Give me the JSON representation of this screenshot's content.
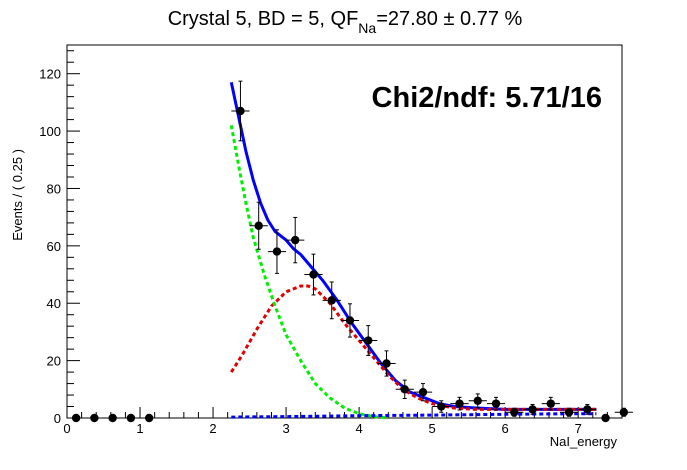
{
  "chart_data": {
    "type": "scatter",
    "title": {
      "main": "Crystal 5, BD = 5, QF",
      "subscript": "Na",
      "tail": "=27.80 ± 0.77 %"
    },
    "xlabel": "NaI_energy",
    "ylabel": "Events / ( 0.25 )",
    "annotation": "Chi2/ndf: 5.71/16",
    "xlim": [
      0,
      7.6
    ],
    "ylim": [
      0,
      130
    ],
    "x_ticks": [
      0,
      1,
      2,
      3,
      4,
      5,
      6,
      7
    ],
    "y_ticks": [
      0,
      20,
      40,
      60,
      80,
      100,
      120
    ],
    "points": [
      {
        "x": 0.125,
        "y": 0,
        "err": 0
      },
      {
        "x": 0.375,
        "y": 0,
        "err": 0
      },
      {
        "x": 0.625,
        "y": 0,
        "err": 0
      },
      {
        "x": 0.875,
        "y": 0,
        "err": 0
      },
      {
        "x": 1.125,
        "y": 0,
        "err": 0
      },
      {
        "x": 2.375,
        "y": 107,
        "err": 10.4
      },
      {
        "x": 2.625,
        "y": 67,
        "err": 8.2
      },
      {
        "x": 2.875,
        "y": 58,
        "err": 7.6
      },
      {
        "x": 3.125,
        "y": 62,
        "err": 7.9
      },
      {
        "x": 3.375,
        "y": 50,
        "err": 7.1
      },
      {
        "x": 3.625,
        "y": 41,
        "err": 6.4
      },
      {
        "x": 3.875,
        "y": 34,
        "err": 5.8
      },
      {
        "x": 4.125,
        "y": 27,
        "err": 5.2
      },
      {
        "x": 4.375,
        "y": 19,
        "err": 4.4
      },
      {
        "x": 4.625,
        "y": 10,
        "err": 3.2
      },
      {
        "x": 4.875,
        "y": 9,
        "err": 3.0
      },
      {
        "x": 5.125,
        "y": 4,
        "err": 2.0
      },
      {
        "x": 5.375,
        "y": 5,
        "err": 2.2
      },
      {
        "x": 5.625,
        "y": 6,
        "err": 2.4
      },
      {
        "x": 5.875,
        "y": 5,
        "err": 2.2
      },
      {
        "x": 6.125,
        "y": 2,
        "err": 1.4
      },
      {
        "x": 6.375,
        "y": 3,
        "err": 1.7
      },
      {
        "x": 6.625,
        "y": 5,
        "err": 2.2
      },
      {
        "x": 6.875,
        "y": 2,
        "err": 1.4
      },
      {
        "x": 7.125,
        "y": 3,
        "err": 1.7
      },
      {
        "x": 7.375,
        "y": 0,
        "err": 0
      },
      {
        "x": 7.625,
        "y": 2,
        "err": 1.4
      }
    ],
    "curves": [
      {
        "color": "#0000ff",
        "style": "solid",
        "points": [
          [
            2.25,
            117
          ],
          [
            2.35,
            105
          ],
          [
            2.45,
            93
          ],
          [
            2.55,
            83
          ],
          [
            2.65,
            75
          ],
          [
            2.75,
            69
          ],
          [
            2.85,
            65
          ],
          [
            3.0,
            62
          ],
          [
            3.1,
            59
          ],
          [
            3.2,
            57
          ],
          [
            3.3,
            54
          ],
          [
            3.5,
            48
          ],
          [
            3.7,
            41
          ],
          [
            3.9,
            33
          ],
          [
            4.1,
            26
          ],
          [
            4.3,
            19
          ],
          [
            4.5,
            13
          ],
          [
            4.7,
            9
          ],
          [
            4.9,
            7
          ],
          [
            5.1,
            5
          ],
          [
            5.3,
            4
          ],
          [
            5.6,
            3.5
          ],
          [
            6.0,
            3
          ],
          [
            6.5,
            3
          ],
          [
            7.0,
            3
          ],
          [
            7.25,
            3
          ]
        ]
      },
      {
        "color": "#e00000",
        "style": "dotted",
        "points": [
          [
            2.25,
            16
          ],
          [
            2.4,
            22
          ],
          [
            2.6,
            31
          ],
          [
            2.8,
            39
          ],
          [
            3.0,
            44
          ],
          [
            3.2,
            46
          ],
          [
            3.3,
            46
          ],
          [
            3.4,
            45
          ],
          [
            3.6,
            40
          ],
          [
            3.8,
            33
          ],
          [
            4.0,
            27
          ],
          [
            4.2,
            21
          ],
          [
            4.4,
            15
          ],
          [
            4.6,
            10
          ],
          [
            4.8,
            7
          ],
          [
            5.0,
            5
          ],
          [
            5.3,
            3.5
          ],
          [
            5.6,
            3
          ],
          [
            6.0,
            3
          ],
          [
            6.5,
            3
          ],
          [
            7.0,
            3
          ],
          [
            7.25,
            3
          ]
        ]
      },
      {
        "color": "#00ee00",
        "style": "dotted",
        "points": [
          [
            2.25,
            102
          ],
          [
            2.35,
            88
          ],
          [
            2.45,
            75
          ],
          [
            2.55,
            63
          ],
          [
            2.7,
            50
          ],
          [
            2.85,
            39
          ],
          [
            3.0,
            29
          ],
          [
            3.2,
            20
          ],
          [
            3.4,
            12
          ],
          [
            3.6,
            7
          ],
          [
            3.8,
            3.5
          ],
          [
            4.0,
            1.5
          ],
          [
            4.2,
            0.5
          ],
          [
            4.4,
            0
          ]
        ]
      },
      {
        "color": "#0000ff",
        "style": "dotted",
        "points": [
          [
            2.25,
            0.3
          ],
          [
            3.0,
            0.5
          ],
          [
            4.0,
            0.8
          ],
          [
            5.0,
            1
          ],
          [
            6.0,
            1.3
          ],
          [
            7.0,
            1.5
          ],
          [
            7.25,
            1.5
          ]
        ]
      }
    ]
  }
}
